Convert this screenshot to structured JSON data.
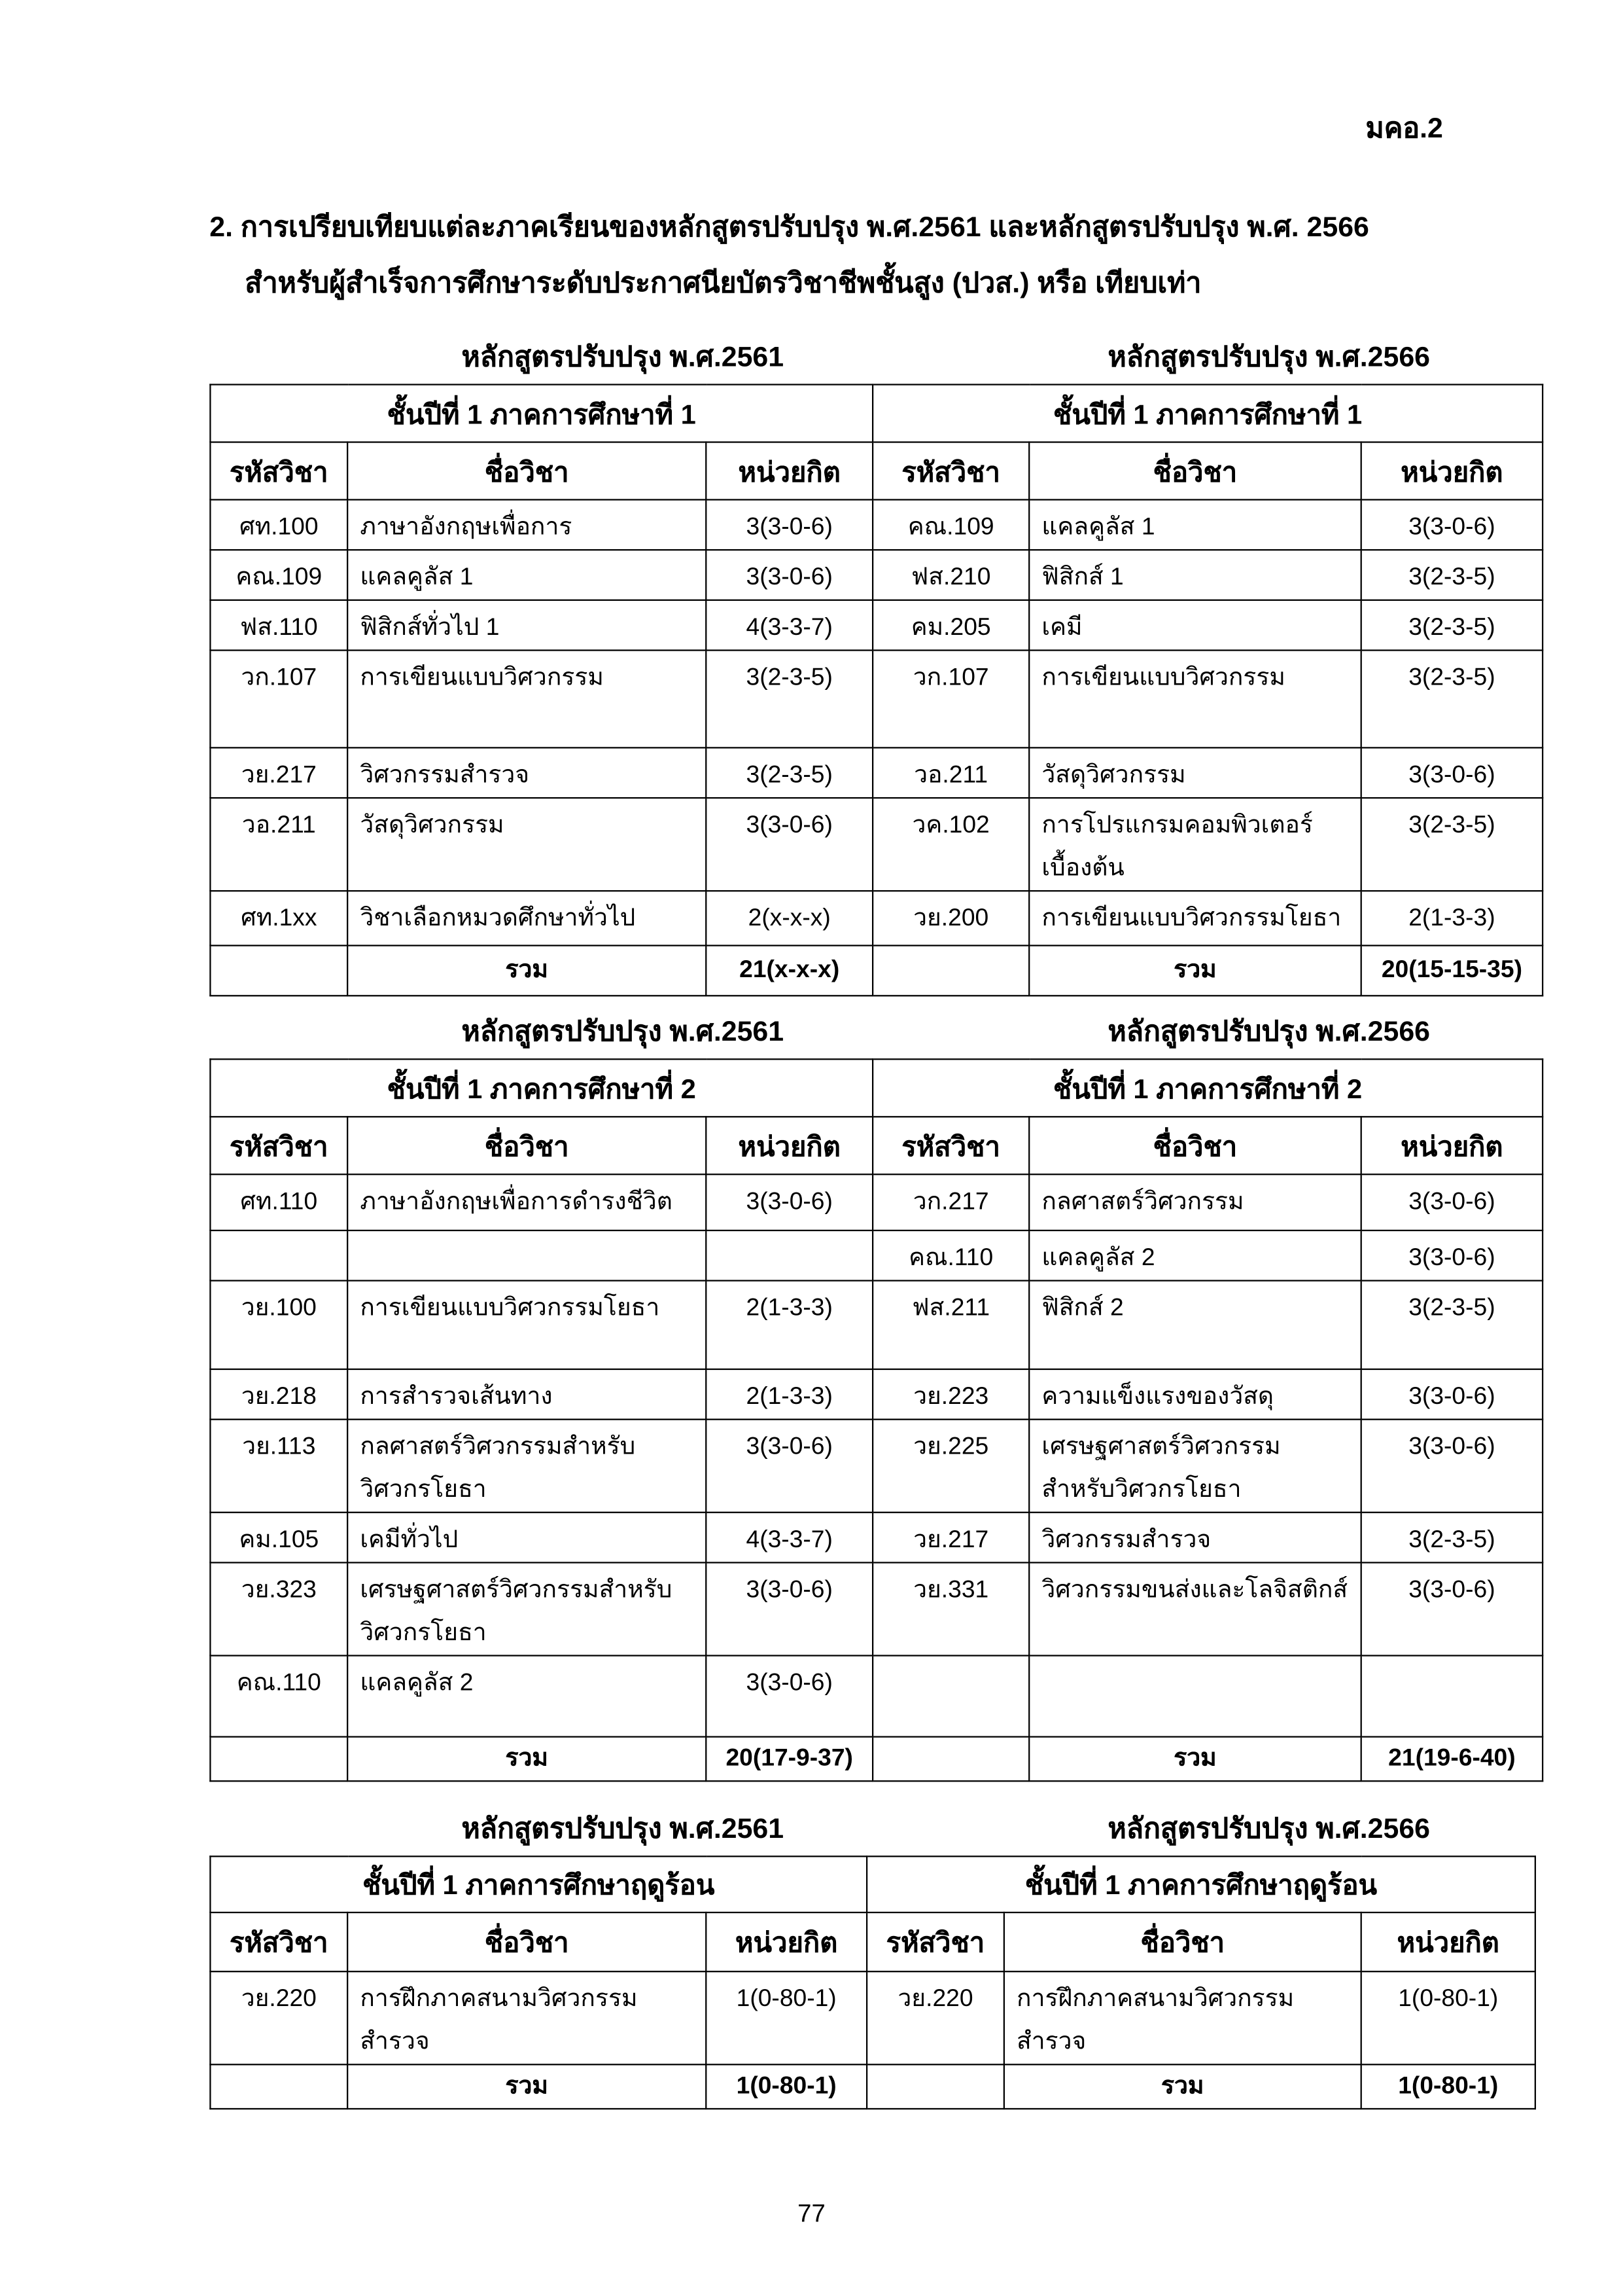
{
  "doc_code": "มคอ.2",
  "section": {
    "line1": "2. การเปรียบเทียบแต่ละภาคเรียนของหลักสูตรปรับปรุง พ.ศ.2561 และหลักสูตรปรับปรุง พ.ศ. 2566",
    "line2": "สำหรับผู้สำเร็จการศึกษาระดับประกาศนียบัตรวิชาชีพชั้นสูง (ปวส.) หรือ เทียบเท่า"
  },
  "columns": {
    "code": "รหัสวิชา",
    "name": "ชื่อวิชา",
    "credits": "หน่วยกิต"
  },
  "tables": [
    {
      "left_heading": "หลักสูตรปรับปรุง พ.ศ.2561",
      "right_heading": "หลักสูตรปรับปรุง พ.ศ.2566",
      "left_term": "ชั้นปีที่ 1 ภาคการศึกษาที่ 1",
      "right_term": "ชั้นปีที่ 1 ภาคการศึกษาที่ 1",
      "rows": [
        {
          "l": [
            "ศท.100",
            "ภาษาอังกฤษเพื่อการ",
            "3(3-0-6)"
          ],
          "r": [
            "คณ.109",
            "แคลคูลัส 1",
            "3(3-0-6)"
          ]
        },
        {
          "l": [
            "คณ.109",
            "แคลคูลัส 1",
            "3(3-0-6)"
          ],
          "r": [
            "ฟส.210",
            "ฟิสิกส์ 1",
            "3(2-3-5)"
          ]
        },
        {
          "l": [
            "ฟส.110",
            "ฟิสิกส์ทั่วไป 1",
            "4(3-3-7)"
          ],
          "r": [
            "คม.205",
            "เคมี",
            "3(2-3-5)"
          ]
        },
        {
          "l": [
            "วก.107",
            "การเขียนแบบวิศวกรรม",
            "3(2-3-5)"
          ],
          "r": [
            "วก.107",
            "การเขียนแบบวิศวกรรม",
            "3(2-3-5)"
          ]
        },
        {
          "l": [
            "วย.217",
            "วิศวกรรมสำรวจ",
            "3(2-3-5)"
          ],
          "r": [
            "วอ.211",
            "วัสดุวิศวกรรม",
            "3(3-0-6)"
          ]
        },
        {
          "l": [
            "วอ.211",
            "วัสดุวิศวกรรม",
            "3(3-0-6)"
          ],
          "r": [
            "วค.102",
            "การโปรแกรมคอมพิวเตอร์เบื้องต้น",
            "3(2-3-5)"
          ]
        },
        {
          "l": [
            "ศท.1xx",
            "วิชาเลือกหมวดศึกษาทั่วไป",
            "2(x-x-x)"
          ],
          "r": [
            "วย.200",
            "การเขียนแบบวิศวกรรมโยธา",
            "2(1-3-3)"
          ]
        }
      ],
      "total_label": "รวม",
      "left_total": "21(x-x-x)",
      "right_total": "20(15-15-35)"
    },
    {
      "left_heading": "หลักสูตรปรับปรุง พ.ศ.2561",
      "right_heading": "หลักสูตรปรับปรุง พ.ศ.2566",
      "left_term": "ชั้นปีที่ 1 ภาคการศึกษาที่ 2",
      "right_term": "ชั้นปีที่ 1 ภาคการศึกษาที่ 2",
      "rows": [
        {
          "l": [
            "ศท.110",
            "ภาษาอังกฤษเพื่อการดำรงชีวิต",
            "3(3-0-6)"
          ],
          "r": [
            "วก.217",
            "กลศาสตร์วิศวกรรม",
            "3(3-0-6)"
          ]
        },
        {
          "l": [
            "",
            "",
            ""
          ],
          "r": [
            "คณ.110",
            "แคลคูลัส 2",
            "3(3-0-6)"
          ]
        },
        {
          "l": [
            "วย.100",
            "การเขียนแบบวิศวกรรมโยธา",
            "2(1-3-3)"
          ],
          "r": [
            "ฟส.211",
            "ฟิสิกส์ 2",
            "3(2-3-5)"
          ]
        },
        {
          "l": [
            "วย.218",
            "การสำรวจเส้นทาง",
            "2(1-3-3)"
          ],
          "r": [
            "วย.223",
            "ความแข็งแรงของวัสดุ",
            "3(3-0-6)"
          ]
        },
        {
          "l": [
            "วย.113",
            "กลศาสตร์วิศวกรรมสำหรับวิศวกรโยธา",
            "3(3-0-6)"
          ],
          "r": [
            "วย.225",
            "เศรษฐศาสตร์วิศวกรรมสำหรับวิศวกรโยธา",
            "3(3-0-6)"
          ]
        },
        {
          "l": [
            "คม.105",
            "เคมีทั่วไป",
            "4(3-3-7)"
          ],
          "r": [
            "วย.217",
            "วิศวกรรมสำรวจ",
            "3(2-3-5)"
          ]
        },
        {
          "l": [
            "วย.323",
            "เศรษฐศาสตร์วิศวกรรมสำหรับวิศวกรโยธา",
            "3(3-0-6)"
          ],
          "r": [
            "วย.331",
            "วิศวกรรมขนส่งและโลจิสติกส์",
            "3(3-0-6)"
          ]
        },
        {
          "l": [
            "คณ.110",
            "แคลคูลัส 2",
            "3(3-0-6)"
          ],
          "r": [
            "",
            "",
            ""
          ]
        }
      ],
      "total_label": "รวม",
      "left_total": "20(17-9-37)",
      "right_total": "21(19-6-40)"
    },
    {
      "left_heading": "หลักสูตรปรับปรุง พ.ศ.2561",
      "right_heading": "หลักสูตรปรับปรุง พ.ศ.2566",
      "left_term": "ชั้นปีที่ 1 ภาคการศึกษาฤดูร้อน",
      "right_term": "ชั้นปีที่ 1 ภาคการศึกษาฤดูร้อน",
      "rows": [
        {
          "l": [
            "วย.220",
            "การฝึกภาคสนามวิศวกรรมสำรวจ",
            "1(0-80-1)"
          ],
          "r": [
            "วย.220",
            "การฝึกภาคสนามวิศวกรรมสำรวจ",
            "1(0-80-1)"
          ]
        }
      ],
      "total_label": "รวม",
      "left_total": "1(0-80-1)",
      "right_total": "1(0-80-1)"
    }
  ],
  "page_number": "77"
}
